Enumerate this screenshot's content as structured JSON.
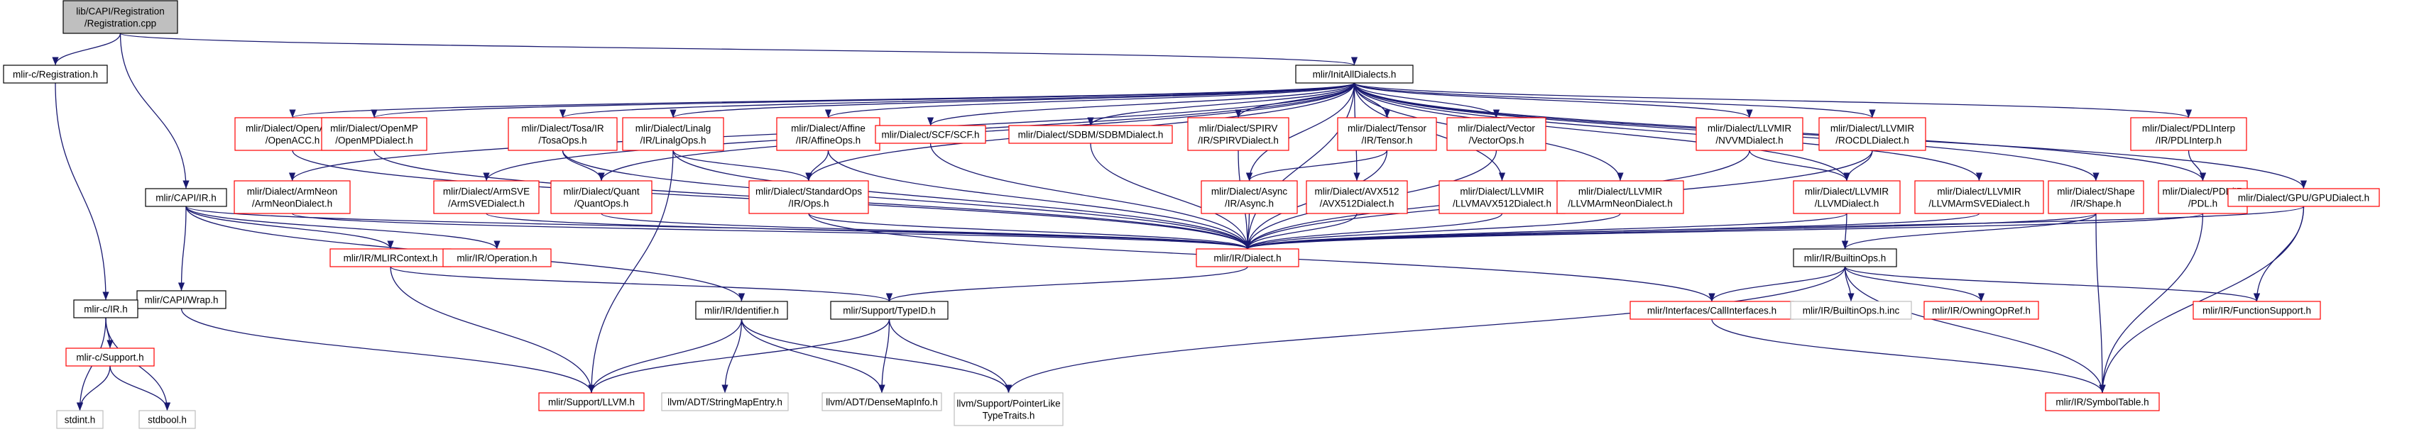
{
  "colors": {
    "edge": "#191970",
    "box_black": "#000000",
    "box_red": "#ff0000",
    "box_gray": "#bfbfbf",
    "root_fill": "#bfbfbf",
    "text": "#000000"
  },
  "nodes": [
    {
      "id": "registration_cpp",
      "style": "root",
      "lines": [
        "lib/CAPI/Registration",
        "/Registration.cpp"
      ]
    },
    {
      "id": "mlirc_registration_h",
      "style": "black",
      "lines": [
        "mlir-c/Registration.h"
      ]
    },
    {
      "id": "init_all_dialects_h",
      "style": "black",
      "lines": [
        "mlir/InitAllDialects.h"
      ]
    },
    {
      "id": "openacc",
      "style": "red",
      "lines": [
        "mlir/Dialect/OpenACC",
        "/OpenACC.h"
      ]
    },
    {
      "id": "openmp",
      "style": "red",
      "lines": [
        "mlir/Dialect/OpenMP",
        "/OpenMPDialect.h"
      ]
    },
    {
      "id": "tosa",
      "style": "red",
      "lines": [
        "mlir/Dialect/Tosa/IR",
        "/TosaOps.h"
      ]
    },
    {
      "id": "linalg",
      "style": "red",
      "lines": [
        "mlir/Dialect/Linalg",
        "/IR/LinalgOps.h"
      ]
    },
    {
      "id": "affine",
      "style": "red",
      "lines": [
        "mlir/Dialect/Affine",
        "/IR/AffineOps.h"
      ]
    },
    {
      "id": "scf",
      "style": "red",
      "lines": [
        "mlir/Dialect/SCF/SCF.h"
      ]
    },
    {
      "id": "sdbm",
      "style": "red",
      "lines": [
        "mlir/Dialect/SDBM/SDBMDialect.h"
      ]
    },
    {
      "id": "spirv",
      "style": "red",
      "lines": [
        "mlir/Dialect/SPIRV",
        "/IR/SPIRVDialect.h"
      ]
    },
    {
      "id": "tensor",
      "style": "red",
      "lines": [
        "mlir/Dialect/Tensor",
        "/IR/Tensor.h"
      ]
    },
    {
      "id": "vector",
      "style": "red",
      "lines": [
        "mlir/Dialect/Vector",
        "/VectorOps.h"
      ]
    },
    {
      "id": "nvvm",
      "style": "red",
      "lines": [
        "mlir/Dialect/LLVMIR",
        "/NVVMDialect.h"
      ]
    },
    {
      "id": "rocdl",
      "style": "red",
      "lines": [
        "mlir/Dialect/LLVMIR",
        "/ROCDLDialect.h"
      ]
    },
    {
      "id": "pdlinterp",
      "style": "red",
      "lines": [
        "mlir/Dialect/PDLInterp",
        "/IR/PDLInterp.h"
      ]
    },
    {
      "id": "armneon",
      "style": "red",
      "lines": [
        "mlir/Dialect/ArmNeon",
        "/ArmNeonDialect.h"
      ]
    },
    {
      "id": "armsve",
      "style": "red",
      "lines": [
        "mlir/Dialect/ArmSVE",
        "/ArmSVEDialect.h"
      ]
    },
    {
      "id": "quant",
      "style": "red",
      "lines": [
        "mlir/Dialect/Quant",
        "/QuantOps.h"
      ]
    },
    {
      "id": "standardops",
      "style": "red",
      "lines": [
        "mlir/Dialect/StandardOps",
        "/IR/Ops.h"
      ]
    },
    {
      "id": "async",
      "style": "red",
      "lines": [
        "mlir/Dialect/Async",
        "/IR/Async.h"
      ]
    },
    {
      "id": "avx512",
      "style": "red",
      "lines": [
        "mlir/Dialect/AVX512",
        "/AVX512Dialect.h"
      ]
    },
    {
      "id": "llvmavx512",
      "style": "red",
      "lines": [
        "mlir/Dialect/LLVMIR",
        "/LLVMAVX512Dialect.h"
      ]
    },
    {
      "id": "llvmarmneon",
      "style": "red",
      "lines": [
        "mlir/Dialect/LLVMIR",
        "/LLVMArmNeonDialect.h"
      ]
    },
    {
      "id": "llvmdialect",
      "style": "red",
      "lines": [
        "mlir/Dialect/LLVMIR",
        "/LLVMDialect.h"
      ]
    },
    {
      "id": "llvmarmsve",
      "style": "red",
      "lines": [
        "mlir/Dialect/LLVMIR",
        "/LLVMArmSVEDialect.h"
      ]
    },
    {
      "id": "shape",
      "style": "red",
      "lines": [
        "mlir/Dialect/Shape",
        "/IR/Shape.h"
      ]
    },
    {
      "id": "pdl",
      "style": "red",
      "lines": [
        "mlir/Dialect/PDL/IR",
        "/PDL.h"
      ]
    },
    {
      "id": "gpu",
      "style": "red",
      "lines": [
        "mlir/Dialect/GPU/GPUDialect.h"
      ]
    },
    {
      "id": "mlir_capi_ir_h",
      "style": "black",
      "lines": [
        "mlir/CAPI/IR.h"
      ]
    },
    {
      "id": "mlircontext",
      "style": "red",
      "lines": [
        "mlir/IR/MLIRContext.h"
      ]
    },
    {
      "id": "operation",
      "style": "red",
      "lines": [
        "mlir/IR/Operation.h"
      ]
    },
    {
      "id": "dialect",
      "style": "red",
      "lines": [
        "mlir/IR/Dialect.h"
      ]
    },
    {
      "id": "builtinops",
      "style": "black",
      "lines": [
        "mlir/IR/BuiltinOps.h"
      ]
    },
    {
      "id": "capi_wrap",
      "style": "black",
      "lines": [
        "mlir/CAPI/Wrap.h"
      ]
    },
    {
      "id": "mlirc_ir",
      "style": "black",
      "lines": [
        "mlir-c/IR.h"
      ]
    },
    {
      "id": "identifier",
      "style": "black",
      "lines": [
        "mlir/IR/Identifier.h"
      ]
    },
    {
      "id": "typeid",
      "style": "black",
      "lines": [
        "mlir/Support/TypeID.h"
      ]
    },
    {
      "id": "callinterfaces",
      "style": "red",
      "lines": [
        "mlir/Interfaces/CallInterfaces.h"
      ]
    },
    {
      "id": "builtinops_inc",
      "style": "gray",
      "lines": [
        "mlir/IR/BuiltinOps.h.inc"
      ]
    },
    {
      "id": "owningopref",
      "style": "red",
      "lines": [
        "mlir/IR/OwningOpRef.h"
      ]
    },
    {
      "id": "functionsupport",
      "style": "red",
      "lines": [
        "mlir/IR/FunctionSupport.h"
      ]
    },
    {
      "id": "mlirc_support",
      "style": "red",
      "lines": [
        "mlir-c/Support.h"
      ]
    },
    {
      "id": "support_llvm",
      "style": "red",
      "lines": [
        "mlir/Support/LLVM.h"
      ]
    },
    {
      "id": "stringmapentry",
      "style": "gray",
      "lines": [
        "llvm/ADT/StringMapEntry.h"
      ]
    },
    {
      "id": "densemapinfo",
      "style": "gray",
      "lines": [
        "llvm/ADT/DenseMapInfo.h"
      ]
    },
    {
      "id": "pointerliketypetraits",
      "style": "gray",
      "lines": [
        "llvm/Support/PointerLike",
        "TypeTraits.h"
      ]
    },
    {
      "id": "symboltable",
      "style": "red",
      "lines": [
        "mlir/IR/SymbolTable.h"
      ]
    },
    {
      "id": "stdint",
      "style": "gray",
      "lines": [
        "stdint.h"
      ]
    },
    {
      "id": "stdbool",
      "style": "gray",
      "lines": [
        "stdbool.h"
      ]
    }
  ],
  "edges": [
    [
      "registration_cpp",
      "mlirc_registration_h"
    ],
    [
      "registration_cpp",
      "init_all_dialects_h"
    ],
    [
      "registration_cpp",
      "mlir_capi_ir_h"
    ],
    [
      "mlirc_registration_h",
      "mlirc_ir"
    ],
    [
      "init_all_dialects_h",
      "armneon"
    ],
    [
      "init_all_dialects_h",
      "openacc"
    ],
    [
      "init_all_dialects_h",
      "openmp"
    ],
    [
      "init_all_dialects_h",
      "armsve"
    ],
    [
      "init_all_dialects_h",
      "tosa"
    ],
    [
      "init_all_dialects_h",
      "quant"
    ],
    [
      "init_all_dialects_h",
      "linalg"
    ],
    [
      "init_all_dialects_h",
      "affine"
    ],
    [
      "init_all_dialects_h",
      "standardops"
    ],
    [
      "init_all_dialects_h",
      "scf"
    ],
    [
      "init_all_dialects_h",
      "sdbm"
    ],
    [
      "init_all_dialects_h",
      "spirv"
    ],
    [
      "init_all_dialects_h",
      "async"
    ],
    [
      "init_all_dialects_h",
      "tensor"
    ],
    [
      "init_all_dialects_h",
      "vector"
    ],
    [
      "init_all_dialects_h",
      "avx512"
    ],
    [
      "init_all_dialects_h",
      "llvmavx512"
    ],
    [
      "init_all_dialects_h",
      "llvmarmneon"
    ],
    [
      "init_all_dialects_h",
      "nvvm"
    ],
    [
      "init_all_dialects_h",
      "rocdl"
    ],
    [
      "init_all_dialects_h",
      "llvmdialect"
    ],
    [
      "init_all_dialects_h",
      "llvmarmsve"
    ],
    [
      "init_all_dialects_h",
      "shape"
    ],
    [
      "init_all_dialects_h",
      "pdl"
    ],
    [
      "init_all_dialects_h",
      "pdlinterp"
    ],
    [
      "init_all_dialects_h",
      "gpu"
    ],
    [
      "init_all_dialects_h",
      "dialect"
    ],
    [
      "openacc",
      "dialect"
    ],
    [
      "openmp",
      "dialect"
    ],
    [
      "armneon",
      "dialect"
    ],
    [
      "armsve",
      "dialect"
    ],
    [
      "tosa",
      "quant"
    ],
    [
      "tosa",
      "dialect"
    ],
    [
      "quant",
      "dialect"
    ],
    [
      "linalg",
      "standardops"
    ],
    [
      "linalg",
      "support_llvm"
    ],
    [
      "linalg",
      "dialect"
    ],
    [
      "affine",
      "standardops"
    ],
    [
      "affine",
      "dialect"
    ],
    [
      "standardops",
      "dialect"
    ],
    [
      "standardops",
      "callinterfaces"
    ],
    [
      "scf",
      "dialect"
    ],
    [
      "sdbm",
      "dialect"
    ],
    [
      "spirv",
      "dialect"
    ],
    [
      "async",
      "dialect"
    ],
    [
      "tensor",
      "async"
    ],
    [
      "tensor",
      "dialect"
    ],
    [
      "vector",
      "dialect"
    ],
    [
      "avx512",
      "dialect"
    ],
    [
      "llvmavx512",
      "dialect"
    ],
    [
      "llvmarmneon",
      "dialect"
    ],
    [
      "nvvm",
      "llvmdialect"
    ],
    [
      "nvvm",
      "dialect"
    ],
    [
      "rocdl",
      "llvmdialect"
    ],
    [
      "rocdl",
      "dialect"
    ],
    [
      "llvmdialect",
      "dialect"
    ],
    [
      "llvmdialect",
      "builtinops"
    ],
    [
      "llvmarmsve",
      "dialect"
    ],
    [
      "shape",
      "dialect"
    ],
    [
      "shape",
      "builtinops"
    ],
    [
      "shape",
      "symboltable"
    ],
    [
      "pdl",
      "dialect"
    ],
    [
      "pdl",
      "symboltable"
    ],
    [
      "pdlinterp",
      "pdl"
    ],
    [
      "gpu",
      "dialect"
    ],
    [
      "gpu",
      "functionsupport"
    ],
    [
      "gpu",
      "symboltable"
    ],
    [
      "mlir_capi_ir_h",
      "capi_wrap"
    ],
    [
      "mlir_capi_ir_h",
      "mlircontext"
    ],
    [
      "mlir_capi_ir_h",
      "operation"
    ],
    [
      "mlir_capi_ir_h",
      "identifier"
    ],
    [
      "mlir_capi_ir_h",
      "dialect"
    ],
    [
      "capi_wrap",
      "mlirc_ir"
    ],
    [
      "capi_wrap",
      "support_llvm"
    ],
    [
      "mlirc_ir",
      "mlirc_support"
    ],
    [
      "mlirc_ir",
      "stdint"
    ],
    [
      "mlirc_ir",
      "stdbool"
    ],
    [
      "mlirc_support",
      "stdint"
    ],
    [
      "mlirc_support",
      "stdbool"
    ],
    [
      "mlircontext",
      "support_llvm"
    ],
    [
      "mlircontext",
      "typeid"
    ],
    [
      "dialect",
      "typeid"
    ],
    [
      "identifier",
      "support_llvm"
    ],
    [
      "identifier",
      "stringmapentry"
    ],
    [
      "identifier",
      "densemapinfo"
    ],
    [
      "identifier",
      "pointerliketypetraits"
    ],
    [
      "typeid",
      "support_llvm"
    ],
    [
      "typeid",
      "densemapinfo"
    ],
    [
      "typeid",
      "pointerliketypetraits"
    ],
    [
      "builtinops",
      "callinterfaces"
    ],
    [
      "builtinops",
      "builtinops_inc"
    ],
    [
      "builtinops",
      "owningopref"
    ],
    [
      "builtinops",
      "functionsupport"
    ],
    [
      "builtinops",
      "symboltable"
    ],
    [
      "builtinops",
      "pointerliketypetraits"
    ],
    [
      "callinterfaces",
      "symboltable"
    ]
  ]
}
